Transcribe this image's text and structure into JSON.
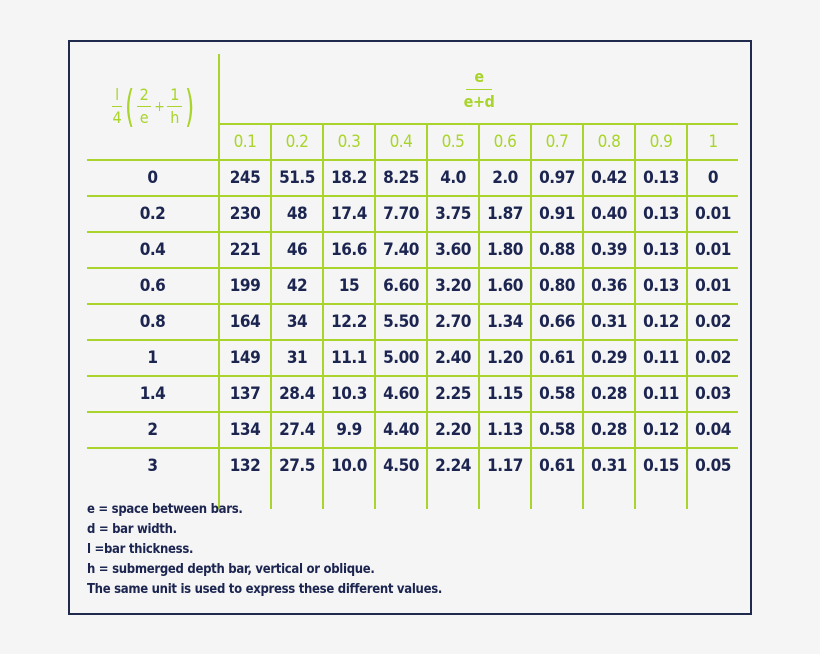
{
  "header": {
    "row_formula": {
      "l": "l",
      "four": "4",
      "two": "2",
      "e": "e",
      "plus": "+",
      "one": "1",
      "h": "h",
      "lparen": "(",
      "rparen": ")"
    },
    "column_ratio": {
      "numerator": "e",
      "denominator": "e+d"
    },
    "columns": [
      "0.1",
      "0.2",
      "0.3",
      "0.4",
      "0.5",
      "0.6",
      "0.7",
      "0.8",
      "0.9",
      "1"
    ]
  },
  "rows": [
    {
      "key": "0",
      "values": [
        "245",
        "51.5",
        "18.2",
        "8.25",
        "4.0",
        "2.0",
        "0.97",
        "0.42",
        "0.13",
        "0"
      ]
    },
    {
      "key": "0.2",
      "values": [
        "230",
        "48",
        "17.4",
        "7.70",
        "3.75",
        "1.87",
        "0.91",
        "0.40",
        "0.13",
        "0.01"
      ]
    },
    {
      "key": "0.4",
      "values": [
        "221",
        "46",
        "16.6",
        "7.40",
        "3.60",
        "1.80",
        "0.88",
        "0.39",
        "0.13",
        "0.01"
      ]
    },
    {
      "key": "0.6",
      "values": [
        "199",
        "42",
        "15",
        "6.60",
        "3.20",
        "1.60",
        "0.80",
        "0.36",
        "0.13",
        "0.01"
      ]
    },
    {
      "key": "0.8",
      "values": [
        "164",
        "34",
        "12.2",
        "5.50",
        "2.70",
        "1.34",
        "0.66",
        "0.31",
        "0.12",
        "0.02"
      ]
    },
    {
      "key": "1",
      "values": [
        "149",
        "31",
        "11.1",
        "5.00",
        "2.40",
        "1.20",
        "0.61",
        "0.29",
        "0.11",
        "0.02"
      ]
    },
    {
      "key": "1.4",
      "values": [
        "137",
        "28.4",
        "10.3",
        "4.60",
        "2.25",
        "1.15",
        "0.58",
        "0.28",
        "0.11",
        "0.03"
      ]
    },
    {
      "key": "2",
      "values": [
        "134",
        "27.4",
        "9.9",
        "4.40",
        "2.20",
        "1.13",
        "0.58",
        "0.28",
        "0.12",
        "0.04"
      ]
    },
    {
      "key": "3",
      "values": [
        "132",
        "27.5",
        "10.0",
        "4.50",
        "2.24",
        "1.17",
        "0.61",
        "0.31",
        "0.15",
        "0.05"
      ]
    }
  ],
  "notes": [
    "e = space between bars.",
    "d = bar width.",
    "l =bar thickness.",
    "h = submerged depth bar, vertical or oblique.",
    "The same unit is used to express these different values."
  ],
  "colors": {
    "accent": "#a9d42c",
    "text": "#1c2550",
    "border": "#1f2a4d",
    "background": "#f5f5f5"
  }
}
